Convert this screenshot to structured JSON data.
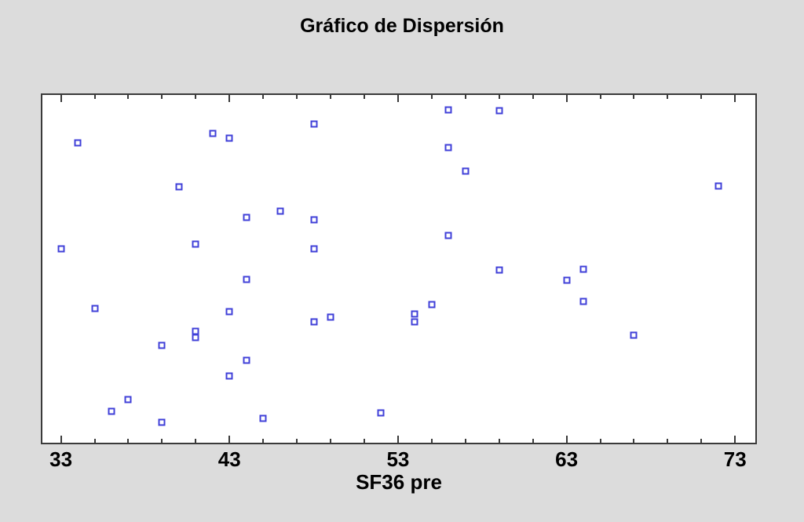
{
  "window": {
    "background_color": "#dcdcdc"
  },
  "chart_data": {
    "type": "scatter",
    "title": "Gráfico de Dispersión",
    "xlabel": "SF36 pre",
    "x_axis": {
      "min": 31.9,
      "max": 74.2,
      "major_ticks": [
        33,
        43,
        53,
        63,
        73
      ],
      "minor_tick_step": 2,
      "all_ticks": [
        33,
        35,
        37,
        39,
        41,
        43,
        45,
        47,
        49,
        51,
        53,
        55,
        57,
        59,
        61,
        63,
        65,
        67,
        69,
        71,
        73
      ],
      "ticks_inside": true,
      "ticks_on_top_and_bottom": true
    },
    "y_axis": {
      "visible": false,
      "note": "no y-axis ticks or labels shown; point y values are relative vertical positions in the plot area (0 = top, 1 = bottom)"
    },
    "style": {
      "marker": "open-square",
      "marker_color": "#4040d8",
      "marker_fill": "#ffffff",
      "marker_size_px": 9,
      "plot_background": "#ffffff",
      "frame_color": "#3a3a3a",
      "text_color": "#000000",
      "grid": false,
      "legend": false
    },
    "points": [
      {
        "x": 34,
        "y": 0.138
      },
      {
        "x": 42,
        "y": 0.11
      },
      {
        "x": 43,
        "y": 0.124
      },
      {
        "x": 48,
        "y": 0.083
      },
      {
        "x": 56,
        "y": 0.042
      },
      {
        "x": 59,
        "y": 0.045
      },
      {
        "x": 56,
        "y": 0.152
      },
      {
        "x": 57,
        "y": 0.22
      },
      {
        "x": 40,
        "y": 0.264
      },
      {
        "x": 72,
        "y": 0.261
      },
      {
        "x": 46,
        "y": 0.333
      },
      {
        "x": 44,
        "y": 0.352
      },
      {
        "x": 48,
        "y": 0.358
      },
      {
        "x": 56,
        "y": 0.404
      },
      {
        "x": 41,
        "y": 0.429
      },
      {
        "x": 33,
        "y": 0.443
      },
      {
        "x": 48,
        "y": 0.443
      },
      {
        "x": 64,
        "y": 0.5
      },
      {
        "x": 59,
        "y": 0.504
      },
      {
        "x": 44,
        "y": 0.531
      },
      {
        "x": 63,
        "y": 0.532
      },
      {
        "x": 64,
        "y": 0.594
      },
      {
        "x": 55,
        "y": 0.602
      },
      {
        "x": 35,
        "y": 0.613
      },
      {
        "x": 43,
        "y": 0.624
      },
      {
        "x": 54,
        "y": 0.63
      },
      {
        "x": 49,
        "y": 0.638
      },
      {
        "x": 48,
        "y": 0.652
      },
      {
        "x": 54,
        "y": 0.652
      },
      {
        "x": 41,
        "y": 0.679
      },
      {
        "x": 67,
        "y": 0.69
      },
      {
        "x": 41,
        "y": 0.697
      },
      {
        "x": 39,
        "y": 0.721
      },
      {
        "x": 44,
        "y": 0.764
      },
      {
        "x": 43,
        "y": 0.807
      },
      {
        "x": 37,
        "y": 0.876
      },
      {
        "x": 36,
        "y": 0.91
      },
      {
        "x": 52,
        "y": 0.915
      },
      {
        "x": 45,
        "y": 0.929
      },
      {
        "x": 39,
        "y": 0.942
      }
    ]
  }
}
